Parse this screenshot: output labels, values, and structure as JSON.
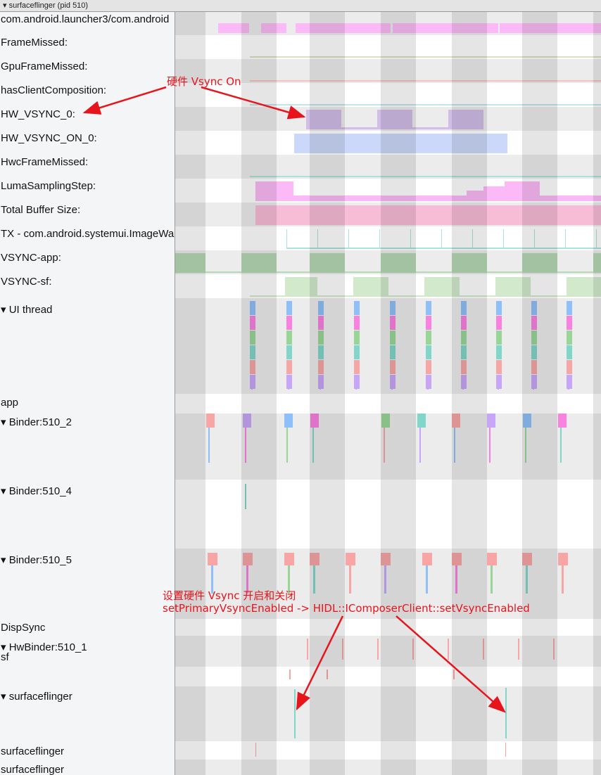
{
  "process_header": "▾ surfaceflinger (pid 510)",
  "tracks": [
    {
      "label": "com.android.launcher3/com.android"
    },
    {
      "label": "FrameMissed:"
    },
    {
      "label": "GpuFrameMissed:"
    },
    {
      "label": "hasClientComposition:"
    },
    {
      "label": "HW_VSYNC_0:"
    },
    {
      "label": "HW_VSYNC_ON_0:"
    },
    {
      "label": "HwcFrameMissed:"
    },
    {
      "label": "LumaSamplingStep:"
    },
    {
      "label": "Total Buffer Size:"
    },
    {
      "label": "TX - com.android.systemui.ImageWallpaper"
    },
    {
      "label": "VSYNC-app:"
    },
    {
      "label": "VSYNC-sf:"
    },
    {
      "label": "▾ UI thread"
    },
    {
      "label": "app"
    },
    {
      "label": "▾ Binder:510_2"
    },
    {
      "label": "▾ Binder:510_4"
    },
    {
      "label": "▾ Binder:510_5"
    },
    {
      "label": "DispSync"
    },
    {
      "label": "▾ HwBinder:510_1"
    },
    {
      "label": "sf"
    },
    {
      "label": "▾ surfaceflinger"
    },
    {
      "label": "surfaceflinger"
    },
    {
      "label": "surfaceflinger"
    }
  ],
  "annotations": {
    "hw_vsync_on": "硬件 Vsync On",
    "set_vsync_line1": "设置硬件 Vsync 开启和关闭",
    "set_vsync_line2": "setPrimaryVsyncEnabled -> HIDL::IComposerClient::setVsyncEnabled"
  },
  "colors": {
    "annotation": "#e8141c",
    "vsync_app": "#b5d9b5",
    "vsync_sf": "#d2eacb",
    "hw_vsync": "#d1bde8",
    "hw_vsync_on": "#ccd8fa",
    "buffer": "#f7bcd6",
    "luma": "#fbbaf7"
  }
}
